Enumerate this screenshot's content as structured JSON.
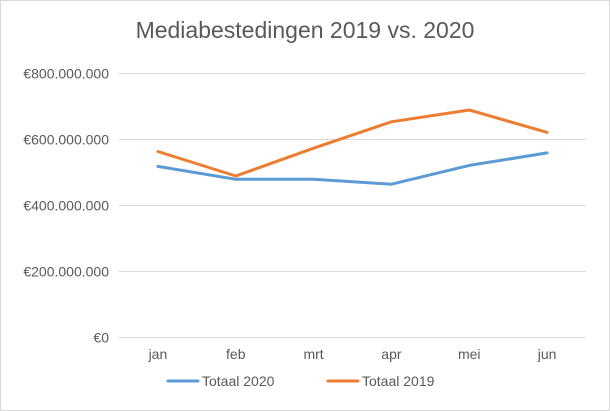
{
  "chart_data": {
    "type": "line",
    "title": "Mediabestedingen 2019 vs. 2020",
    "xlabel": "",
    "ylabel": "",
    "categories": [
      "jan",
      "feb",
      "mrt",
      "apr",
      "mei",
      "jun"
    ],
    "ylim": [
      0,
      800000000
    ],
    "yticks": [
      0,
      200000000,
      400000000,
      600000000,
      800000000
    ],
    "ytick_labels": [
      "€0",
      "€200.000.000",
      "€400.000.000",
      "€600.000.000",
      "€800.000.000"
    ],
    "grid": true,
    "legend_position": "bottom",
    "series": [
      {
        "name": "Totaal 2020",
        "color": "#5b9bd5",
        "values": [
          517000000,
          478000000,
          478000000,
          463000000,
          520000000,
          558000000
        ]
      },
      {
        "name": "Totaal 2019",
        "color": "#ed7d31",
        "values": [
          562000000,
          488000000,
          572000000,
          652000000,
          688000000,
          620000000
        ]
      }
    ]
  }
}
